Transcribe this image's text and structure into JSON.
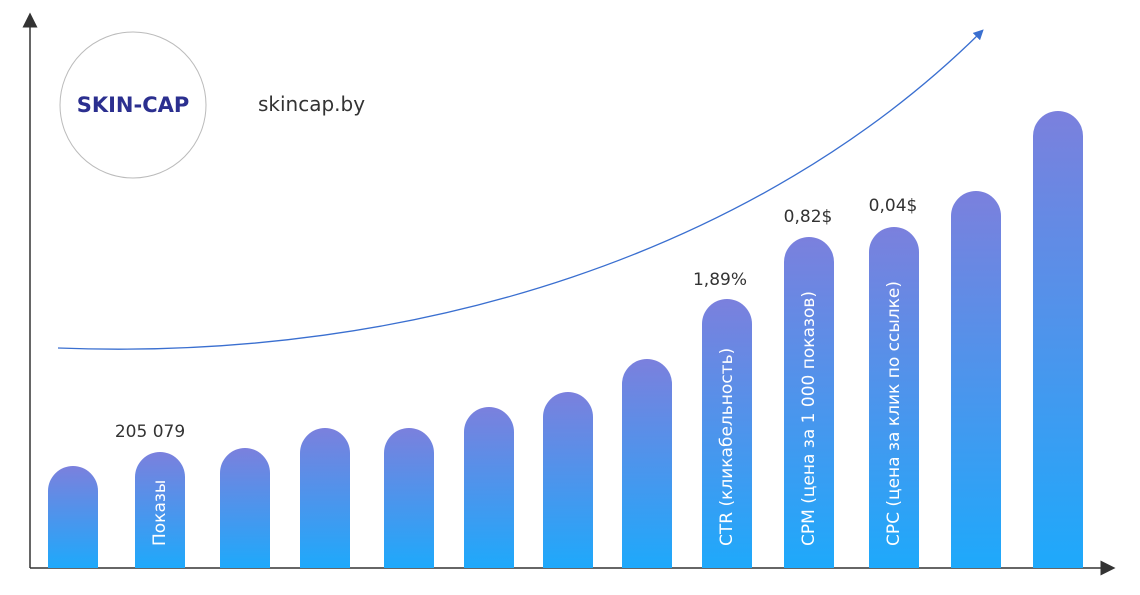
{
  "logo": {
    "text": "SKIN-CAP"
  },
  "site": "skincap.by",
  "metrics": [
    {
      "value": "205 079",
      "label": "Показы"
    },
    {
      "value": "1,89%",
      "label": "CTR (кликабельность)"
    },
    {
      "value": "0,82$",
      "label": "CPM (цена за 1 000 показов)"
    },
    {
      "value": "0,04$",
      "label": "CPC (цена за клик по ссылке)"
    }
  ]
}
